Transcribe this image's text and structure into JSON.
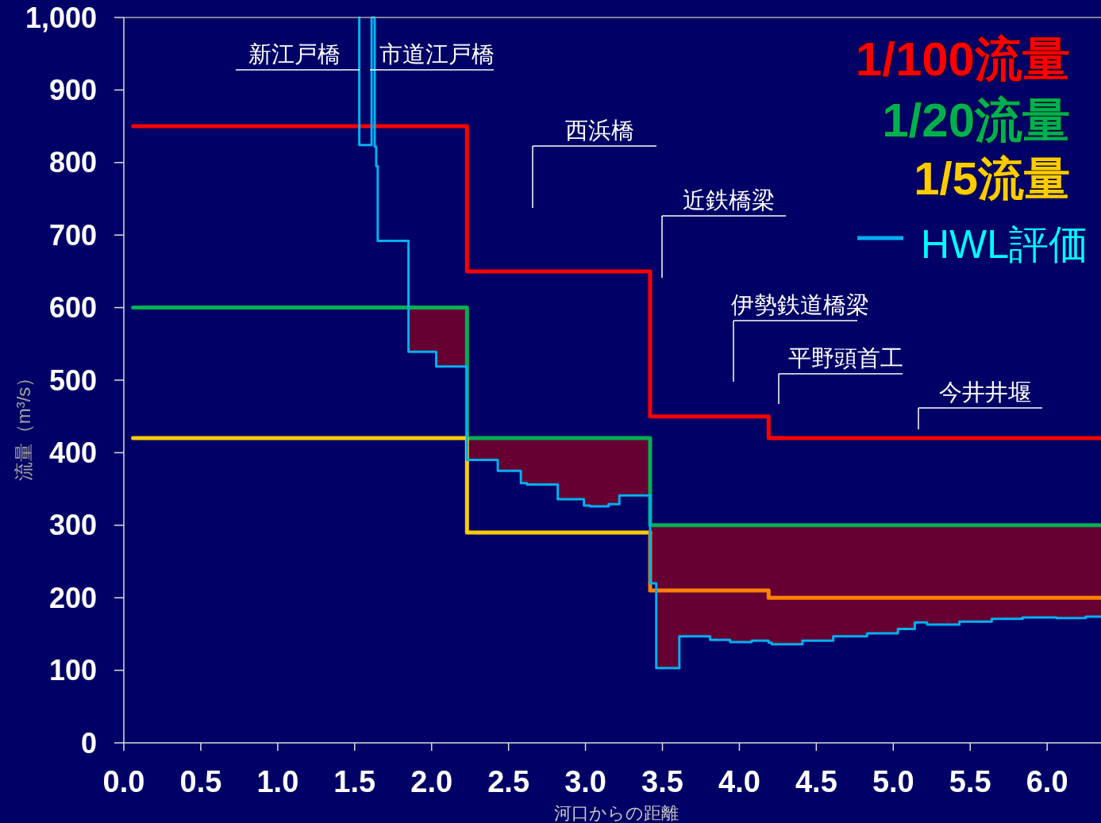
{
  "chart_data": {
    "type": "step",
    "xlabel": "河口からの距離",
    "ylabel": "流量（m³/s）",
    "xlim": [
      0,
      6.35
    ],
    "ylim": [
      0,
      1000
    ],
    "xticks": [
      {
        "value": 0,
        "label": "0.0"
      },
      {
        "value": 0.5,
        "label": "0.5"
      },
      {
        "value": 1,
        "label": "1.0"
      },
      {
        "value": 1.5,
        "label": "1.5"
      },
      {
        "value": 2,
        "label": "2.0"
      },
      {
        "value": 2.5,
        "label": "2.5"
      },
      {
        "value": 3,
        "label": "3.0"
      },
      {
        "value": 3.5,
        "label": "3.5"
      },
      {
        "value": 4,
        "label": "4.0"
      },
      {
        "value": 4.5,
        "label": "4.5"
      },
      {
        "value": 5,
        "label": "5.0"
      },
      {
        "value": 5.5,
        "label": "5.5"
      },
      {
        "value": 6,
        "label": "6.0"
      }
    ],
    "yticks": [
      0,
      100,
      200,
      300,
      400,
      500,
      600,
      700,
      800,
      900,
      {
        "value": 1000,
        "label": "1,000"
      }
    ],
    "legend": "top right",
    "series": [
      {
        "name": "1/100流量",
        "color": "#ff0000",
        "x": [
          0.06,
          2.23,
          3.42,
          4.19,
          6.35
        ],
        "values": [
          850,
          650,
          450,
          420,
          420
        ]
      },
      {
        "name": "1/20流量",
        "color": "#00b050",
        "x": [
          0.06,
          2.23,
          3.42,
          6.35
        ],
        "values": [
          600,
          420,
          300,
          300
        ]
      },
      {
        "name": "1/5流量",
        "color": "#ffcc00",
        "x": [
          0.06,
          2.23,
          3.42
        ],
        "values": [
          420,
          290,
          290
        ]
      },
      {
        "color": "#ff8000",
        "x": [
          3.42,
          3.42,
          4.19,
          6.35
        ],
        "values": [
          290,
          210,
          200,
          200
        ]
      },
      {
        "name": "HWL評価",
        "color": "#00b0f0",
        "x": [
          1.53,
          1.53,
          1.61,
          1.63,
          1.64,
          1.65,
          1.85,
          2.03,
          2.23,
          2.43,
          2.58,
          2.62,
          2.82,
          2.99,
          3.03,
          3.15,
          3.22,
          3.42,
          3.46,
          3.61,
          3.81,
          3.94,
          4.08,
          4.19,
          4.21,
          4.41,
          4.61,
          4.83,
          5.03,
          5.14,
          5.22,
          5.43,
          5.64,
          5.84,
          6.06,
          6.25,
          6.35
        ],
        "values": [
          1000,
          824,
          1000,
          822,
          795,
          692,
          539,
          519,
          390,
          375,
          358,
          356,
          336,
          327,
          326,
          329,
          341,
          220,
          103,
          147,
          142,
          139,
          141,
          138,
          136,
          141,
          147,
          151,
          157,
          166,
          163,
          167,
          171,
          173,
          172,
          174,
          174
        ],
        "lower": [
          null,
          null,
          null,
          null,
          null,
          null,
          539,
          519,
          390,
          375,
          358,
          356,
          336,
          327,
          326,
          329,
          341,
          220,
          103,
          147,
          142,
          139,
          141,
          138,
          136,
          141,
          147,
          151,
          157,
          166,
          163,
          167,
          171,
          173,
          172,
          174,
          174
        ],
        "upper": [
          null,
          null,
          null,
          null,
          null,
          null,
          600,
          600,
          420,
          420,
          420,
          420,
          420,
          420,
          420,
          420,
          420,
          300,
          300,
          300,
          300,
          300,
          300,
          300,
          300,
          300,
          300,
          300,
          300,
          300,
          300,
          300,
          300,
          300,
          300,
          300,
          300
        ]
      }
    ],
    "annotations": [
      "新江戸橋",
      "市道江戸橋",
      "西浜橋",
      "近鉄橋梁",
      "伊勢鉄道橋梁",
      "平野頭首工",
      "今井井堰"
    ]
  }
}
